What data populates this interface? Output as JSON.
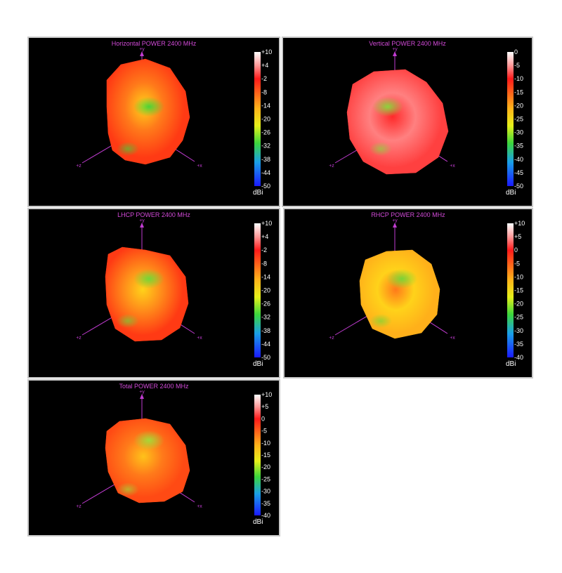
{
  "colorbar_unit": "dBi",
  "axis_labels": {
    "y": "+y",
    "x": "+x",
    "z": "+z"
  },
  "colors": {
    "title": "#d24ad8",
    "axes": "#c03cd0",
    "tick_text": "#ffffff",
    "background": "#000000"
  },
  "chart_data": [
    {
      "type": "heatmap",
      "title": "Horizontal POWER 2400  MHz",
      "colorbar_ticks": [
        "+10",
        "+4",
        "-2",
        "-8",
        "-14",
        "-20",
        "-26",
        "-32",
        "-38",
        "-44",
        "-50"
      ],
      "colorbar_range": [
        -50,
        10
      ],
      "unit": "dBi",
      "dominant_colors": [
        "#ff3a14",
        "#ff7a1a",
        "#ffd21a",
        "#37d63a"
      ]
    },
    {
      "type": "heatmap",
      "title": "Vertical POWER 2400  MHz",
      "colorbar_ticks": [
        "0",
        "-5",
        "-10",
        "-15",
        "-20",
        "-25",
        "-30",
        "-35",
        "-40",
        "-45",
        "-50"
      ],
      "colorbar_range": [
        -50,
        0
      ],
      "unit": "dBi",
      "dominant_colors": [
        "#ff4040",
        "#ff8080",
        "#ff2a2a",
        "#7ee23a"
      ]
    },
    {
      "type": "heatmap",
      "title": "LHCP POWER 2400  MHz",
      "colorbar_ticks": [
        "+10",
        "+4",
        "-2",
        "-8",
        "-14",
        "-20",
        "-26",
        "-32",
        "-38",
        "-44",
        "-50"
      ],
      "colorbar_range": [
        -50,
        10
      ],
      "unit": "dBi",
      "dominant_colors": [
        "#ff3a14",
        "#ff8c1a",
        "#ffd21a",
        "#62dc3a"
      ]
    },
    {
      "type": "heatmap",
      "title": "RHCP POWER 2400  MHz",
      "colorbar_ticks": [
        "+10",
        "+5",
        "0",
        "-5",
        "-10",
        "-15",
        "-20",
        "-25",
        "-30",
        "-35",
        "-40"
      ],
      "colorbar_range": [
        -40,
        10
      ],
      "unit": "dBi",
      "dominant_colors": [
        "#ffb01a",
        "#ffd21a",
        "#ff7a1a",
        "#6ad83a"
      ]
    },
    {
      "type": "heatmap",
      "title": "Total POWER 2400  MHz",
      "colorbar_ticks": [
        "+10",
        "+5",
        "0",
        "-5",
        "-10",
        "-15",
        "-20",
        "-25",
        "-30",
        "-35",
        "-40"
      ],
      "colorbar_range": [
        -40,
        10
      ],
      "unit": "dBi",
      "dominant_colors": [
        "#ff4a14",
        "#ff7a1a",
        "#ffc21a",
        "#9ae23a"
      ]
    }
  ]
}
